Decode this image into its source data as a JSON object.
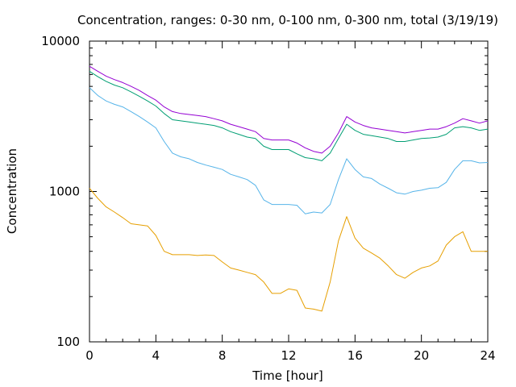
{
  "chart_data": {
    "type": "line",
    "title": "Concentration, ranges: 0-30 nm, 0-100 nm, 0-300 nm, total (3/19/19)",
    "xlabel": "Time [hour]",
    "ylabel": "Concentration",
    "xlim": [
      0,
      24
    ],
    "ylim": [
      100,
      10000
    ],
    "yscale": "log",
    "x_ticks": [
      "0",
      "4",
      "8",
      "12",
      "16",
      "20",
      "24"
    ],
    "y_ticks": [
      "100",
      "1000",
      "10000"
    ],
    "grid": false,
    "legend": "none",
    "x": [
      0,
      0.5,
      1,
      1.5,
      2,
      2.5,
      3,
      3.5,
      4,
      4.5,
      5,
      5.5,
      6,
      6.5,
      7,
      7.5,
      8,
      8.5,
      9,
      9.5,
      10,
      10.5,
      11,
      11.5,
      12,
      12.5,
      13,
      13.5,
      14,
      14.5,
      15,
      15.5,
      16,
      16.5,
      17,
      17.5,
      18,
      18.5,
      19,
      19.5,
      20,
      20.5,
      21,
      21.5,
      22,
      22.5,
      23,
      23.5,
      24
    ],
    "series": [
      {
        "color": "#e69f00",
        "values": [
          1050,
          900,
          790,
          730,
          670,
          610,
          600,
          590,
          510,
          400,
          380,
          380,
          380,
          375,
          378,
          375,
          340,
          310,
          300,
          290,
          280,
          250,
          210,
          210,
          225,
          220,
          168,
          165,
          160,
          250,
          470,
          680,
          490,
          420,
          390,
          360,
          320,
          280,
          265,
          290,
          310,
          320,
          345,
          440,
          500,
          540,
          400,
          400,
          400
        ]
      },
      {
        "color": "#56b4e9",
        "values": [
          4900,
          4350,
          4000,
          3800,
          3650,
          3400,
          3150,
          2900,
          2650,
          2150,
          1800,
          1700,
          1650,
          1560,
          1500,
          1450,
          1400,
          1300,
          1250,
          1200,
          1100,
          880,
          820,
          820,
          820,
          810,
          710,
          730,
          720,
          820,
          1200,
          1650,
          1400,
          1250,
          1220,
          1120,
          1050,
          980,
          960,
          1000,
          1020,
          1050,
          1060,
          1150,
          1400,
          1600,
          1600,
          1550,
          1560
        ]
      },
      {
        "color": "#009e73",
        "values": [
          6300,
          5800,
          5400,
          5100,
          4900,
          4600,
          4300,
          4000,
          3700,
          3300,
          3000,
          2950,
          2900,
          2850,
          2800,
          2750,
          2650,
          2500,
          2400,
          2300,
          2250,
          2000,
          1900,
          1900,
          1900,
          1780,
          1680,
          1650,
          1600,
          1800,
          2250,
          2800,
          2550,
          2400,
          2350,
          2300,
          2250,
          2150,
          2150,
          2200,
          2250,
          2270,
          2300,
          2400,
          2650,
          2700,
          2650,
          2550,
          2600
        ]
      },
      {
        "color": "#9400d3",
        "values": [
          6800,
          6300,
          5850,
          5550,
          5300,
          5000,
          4700,
          4350,
          4050,
          3650,
          3400,
          3300,
          3250,
          3200,
          3150,
          3050,
          2950,
          2800,
          2700,
          2600,
          2500,
          2250,
          2200,
          2200,
          2200,
          2100,
          1950,
          1850,
          1800,
          2000,
          2450,
          3150,
          2900,
          2750,
          2650,
          2600,
          2550,
          2500,
          2450,
          2500,
          2550,
          2600,
          2600,
          2700,
          2850,
          3050,
          2950,
          2850,
          2950
        ]
      }
    ]
  }
}
